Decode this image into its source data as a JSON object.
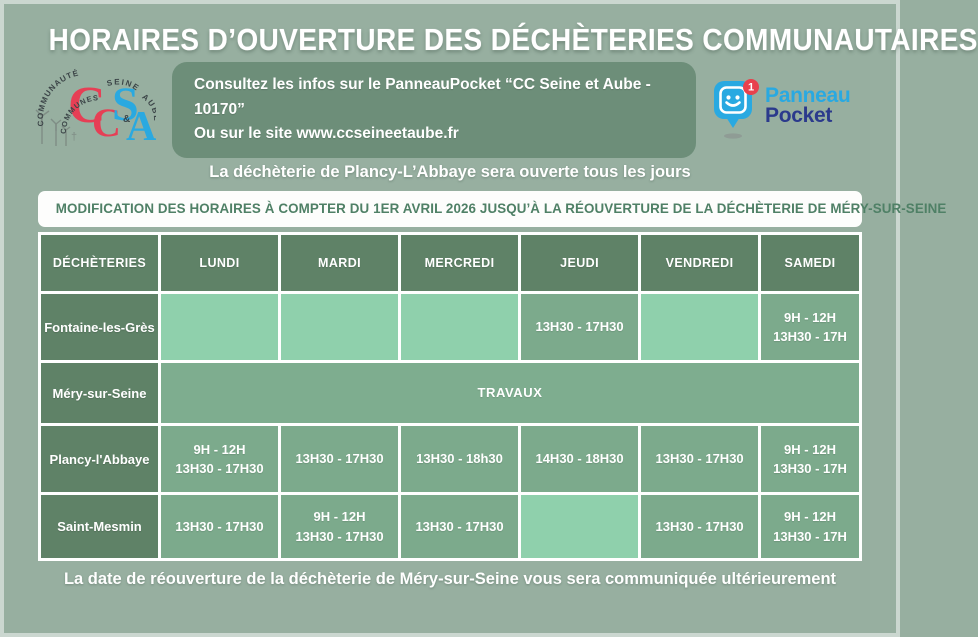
{
  "page": {
    "title": "HORAIRES D’OUVERTURE DES DÉCHÈTERIES COMMUNAUTAIRES",
    "notice": "La déchèterie de Plancy-L’Abbaye sera ouverte tous les jours",
    "modification_banner": "MODIFICATION DES HORAIRES À COMPTER DU 1ER AVRIL 2026 JUSQU’À LA RÉOUVERTURE DE LA DÉCHÈTERIE DE MÉRY-SUR-SEINE",
    "footer": "La date de réouverture de la déchèterie de Méry-sur-Seine vous sera communiquée ultérieurement"
  },
  "info_banner": {
    "line1": "Consultez les infos sur le PanneauPocket “CC Seine et Aube - 10170”",
    "line2": "Ou sur le site www.ccseineetaube.fr"
  },
  "logos": {
    "ccsa": {
      "letters": {
        "c1": "C",
        "c2": "C",
        "s": "S",
        "a": "A",
        "amp": "&"
      },
      "arc_words": {
        "w1": "COMMUNAUTÉ",
        "w2": "COMMUNES",
        "w3": "SEINE",
        "w4": "AUBE"
      }
    },
    "panneau_pocket": {
      "name_top": "Panneau",
      "name_bottom": "Pocket",
      "badge": "1"
    }
  },
  "schedule_table": {
    "headers": [
      "DÉCHÈTERIES",
      "LUNDI",
      "MARDI",
      "MERCREDI",
      "JEUDI",
      "VENDREDI",
      "SAMEDI"
    ],
    "rows": [
      {
        "name": "Fontaine-les-Grès",
        "cells": [
          [],
          [],
          [],
          [
            "13H30 - 17H30"
          ],
          [],
          [
            "9H - 12H",
            "13H30 - 17H"
          ]
        ]
      },
      {
        "name": "Méry-sur-Seine",
        "merged": "TRAVAUX"
      },
      {
        "name": "Plancy-l'Abbaye",
        "cells": [
          [
            "9H - 12H",
            "13H30 - 17H30"
          ],
          [
            "13H30 - 17H30"
          ],
          [
            "13H30 - 18h30"
          ],
          [
            "14H30 - 18H30"
          ],
          [
            "13H30 - 17H30"
          ],
          [
            "9H - 12H",
            "13H30 - 17H"
          ]
        ]
      },
      {
        "name": "Saint-Mesmin",
        "cells": [
          [
            "13H30 - 17H30"
          ],
          [
            "9H - 12H",
            "13H30 - 17H30"
          ],
          [
            "13H30 - 17H30"
          ],
          [],
          [
            "13H30 - 17H30"
          ],
          [
            "9H - 12H",
            "13H30 - 17H"
          ]
        ]
      }
    ]
  },
  "colors": {
    "page_bg": "#97afa0",
    "header_cell_green": "#5f8267",
    "filled_cell_green": "#7caa8c",
    "empty_cell_green": "#8fd0ac",
    "travaux_cell_green": "#7ead8f",
    "info_banner_green": "#6d8e79",
    "mod_banner_text_green": "#4f8066",
    "panneau_pocket_blue": "#29a9e1",
    "panneau_pocket_navy": "#2b3a8c",
    "badge_red": "#e8414d",
    "ccsa_red": "#e63f55",
    "ccsa_blue": "#2aa9e0"
  }
}
